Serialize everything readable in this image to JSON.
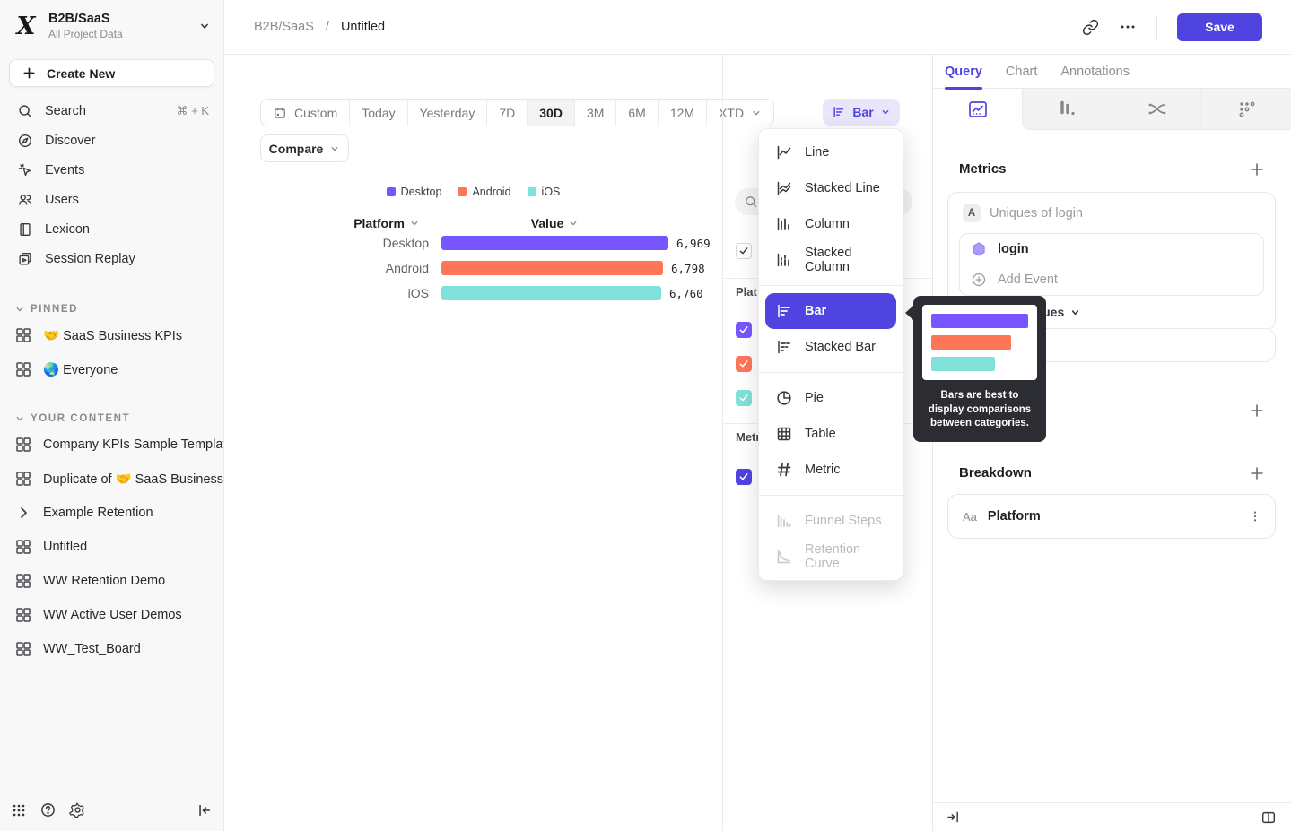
{
  "colors": {
    "accent": "#4F44E0"
  },
  "workspace": {
    "name": "B2B/SaaS",
    "subtitle": "All Project Data"
  },
  "sidebar": {
    "create_new": "Create New",
    "nav": [
      {
        "label": "Search",
        "shortcut": "⌘ + K"
      },
      {
        "label": "Discover"
      },
      {
        "label": "Events"
      },
      {
        "label": "Users"
      },
      {
        "label": "Lexicon"
      },
      {
        "label": "Session Replay"
      }
    ],
    "pinned_header": "PINNED",
    "pinned": [
      {
        "label": "🤝 SaaS Business KPIs"
      },
      {
        "label": "🌏 Everyone"
      }
    ],
    "your_content_header": "YOUR CONTENT",
    "your_content": [
      {
        "label": "Company KPIs Sample Templat"
      },
      {
        "label": "Duplicate of 🤝 SaaS Business"
      },
      {
        "label": "Example Retention"
      },
      {
        "label": "Untitled"
      },
      {
        "label": "WW Retention Demo"
      },
      {
        "label": "WW Active User Demos"
      },
      {
        "label": "WW_Test_Board"
      }
    ]
  },
  "header": {
    "breadcrumb_root": "B2B/SaaS",
    "breadcrumb_sep": "/",
    "breadcrumb_current": "Untitled",
    "save_label": "Save"
  },
  "toolbar": {
    "date_ranges": [
      "Custom",
      "Today",
      "Yesterday",
      "7D",
      "30D",
      "3M",
      "6M",
      "12M",
      "XTD"
    ],
    "selected_range": "30D",
    "compare_label": "Compare",
    "chart_type_label": "Bar"
  },
  "chart_data": {
    "type": "bar",
    "orientation": "horizontal",
    "columns": [
      "Platform",
      "Value"
    ],
    "categories": [
      "Desktop",
      "Android",
      "iOS"
    ],
    "values": [
      6969,
      6798,
      6760
    ],
    "value_labels": [
      "6,969",
      "6,798",
      "6,760"
    ],
    "colors": [
      "#7856FF",
      "#FF7557",
      "#80E1D9"
    ],
    "legend": [
      "Desktop",
      "Android",
      "iOS"
    ],
    "xlim": [
      0,
      6969
    ],
    "grid": false,
    "legend_position": "top"
  },
  "chart_menu": {
    "items": [
      {
        "label": "Line"
      },
      {
        "label": "Stacked Line"
      },
      {
        "label": "Column"
      },
      {
        "label": "Stacked Column"
      },
      {
        "label": "Bar",
        "selected": true
      },
      {
        "label": "Stacked Bar"
      },
      {
        "label": "Pie"
      },
      {
        "label": "Table"
      },
      {
        "label": "Metric"
      },
      {
        "label": "Funnel Steps",
        "disabled": true
      },
      {
        "label": "Retention Curve",
        "disabled": true
      }
    ],
    "tooltip_text": "Bars are best to display comparisons between categories."
  },
  "series_panel": {
    "platform_label": "Platform",
    "metrics_label": "Metrics"
  },
  "query_panel": {
    "tabs": [
      "Query",
      "Chart",
      "Annotations"
    ],
    "active_tab": "Query",
    "metrics_heading": "Metrics",
    "metric_letter": "A",
    "metric_summary": "Uniques of login",
    "event_name": "login",
    "add_event_label": "Add Event",
    "aggregation_label": "Uniques",
    "breakdown_heading": "Breakdown",
    "breakdown_badge": "Aa",
    "breakdown_property": "Platform"
  }
}
